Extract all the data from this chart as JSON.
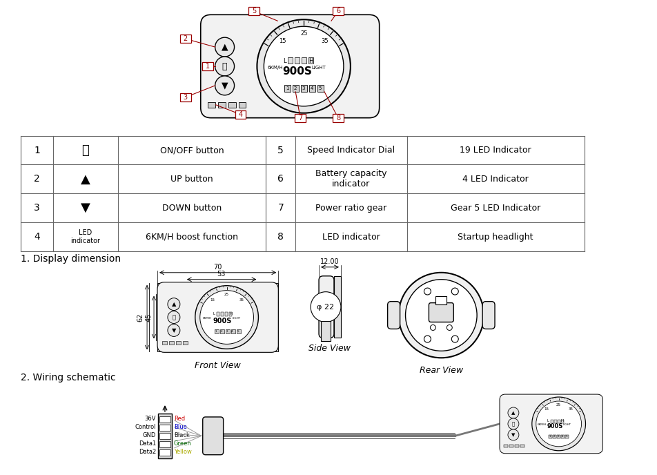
{
  "bg_color": "#ffffff",
  "line_color": "#000000",
  "red_color": "#990000",
  "gray_color": "#888888",
  "light_gray": "#cccccc",
  "dark_gray": "#555555",
  "table_rows": [
    {
      "num": "1",
      "symbol": "⏻",
      "desc": "ON/OFF button",
      "num2": "5",
      "func": "Speed Indicator Dial",
      "detail": "19 LED Indicator"
    },
    {
      "num": "2",
      "symbol": "▲",
      "desc": "UP button",
      "num2": "6",
      "func": "Battery capacity\nindicator",
      "detail": "4 LED Indicator"
    },
    {
      "num": "3",
      "symbol": "▼",
      "desc": "DOWN button",
      "num2": "7",
      "func": "Power ratio gear",
      "detail": "Gear 5 LED Indicator"
    },
    {
      "num": "4",
      "symbol": "LED indicator",
      "desc": "6KM/H boost function",
      "num2": "8",
      "func": "LED indicator",
      "detail": "Startup headlight"
    }
  ],
  "section1_title": "1. Display dimension",
  "section2_title": "2. Wiring schematic",
  "front_view_text": "Front View",
  "side_view_text": "Side View",
  "rear_view_text": "Rear View",
  "side_view_label": "φ 22",
  "wiring_labels": [
    [
      "36V",
      "Red"
    ],
    [
      "Control",
      "Blue"
    ],
    [
      "GND",
      "Black"
    ],
    [
      "Data1",
      "Green"
    ],
    [
      "Data2",
      "Yellow"
    ]
  ],
  "wiring_colors": [
    "#cc0000",
    "#0000cc",
    "#222222",
    "#006600",
    "#aaaa00"
  ],
  "display_name": "900S"
}
